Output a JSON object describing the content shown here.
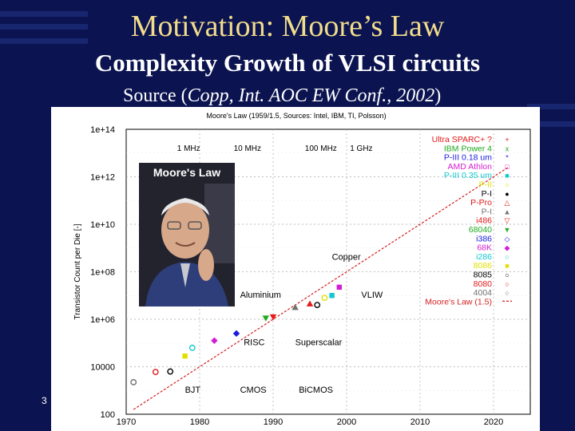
{
  "slide": {
    "title": "Motivation: Moore’s Law",
    "subtitle": "Complexity Growth of VLSI circuits",
    "source_prefix": "Source (",
    "source_italic": "Copp, Int. AOC EW Conf., 2002",
    "source_suffix": ")",
    "page_number": "3"
  },
  "chart_data": {
    "type": "scatter",
    "title": "Moore's Law (1959/1.5, Sources: Intel, IBM, TI, Polsson)",
    "ylabel": "Transistor Count per Die [-]",
    "xlabel": "",
    "xlim": [
      1970,
      2025
    ],
    "ylim_exp": [
      2,
      14
    ],
    "y_scale": "log",
    "x_ticks": [
      "1970",
      "1980",
      "1990",
      "2000",
      "2010",
      "2020"
    ],
    "y_ticks": [
      "100",
      "10000",
      "1e+06",
      "1e+08",
      "1e+10",
      "1e+12",
      "1e+14"
    ],
    "grid": true,
    "frequency_labels": [
      {
        "text": "1 MHz",
        "x": 1978.5,
        "y_exp": 13.1
      },
      {
        "text": "10 MHz",
        "x": 1986.5,
        "y_exp": 13.1
      },
      {
        "text": "100 MHz",
        "x": 1996.5,
        "y_exp": 13.1
      },
      {
        "text": "1 GHz",
        "x": 2002,
        "y_exp": 13.1
      }
    ],
    "annotations": [
      {
        "text": "Copper",
        "x": 1998,
        "y_exp": 8.5
      },
      {
        "text": "Aluminium",
        "x": 1985.5,
        "y_exp": 6.9
      },
      {
        "text": "VLIW",
        "x": 2002,
        "y_exp": 6.9
      },
      {
        "text": "RISC",
        "x": 1986,
        "y_exp": 4.9
      },
      {
        "text": "Superscalar",
        "x": 1993,
        "y_exp": 4.9
      },
      {
        "text": "BJT",
        "x": 1978,
        "y_exp": 2.9
      },
      {
        "text": "CMOS",
        "x": 1985.5,
        "y_exp": 2.9
      },
      {
        "text": "BiCMOS",
        "x": 1993.5,
        "y_exp": 2.9
      }
    ],
    "moore_line": {
      "name": "Moore's Law (1.5)",
      "x_start": 1971,
      "y_exp_start": 2.2,
      "x_end": 2022,
      "y_exp_end": 12.4,
      "color": "#d42020"
    },
    "series": [
      {
        "name": "Ultra SPARC+ ?",
        "color": "#e21a1a",
        "marker": "+"
      },
      {
        "name": "IBM Power 4",
        "color": "#1faa1f",
        "marker": "x"
      },
      {
        "name": "P-III 0.18 um",
        "color": "#1a1ae0",
        "marker": "*"
      },
      {
        "name": "AMD Athlon",
        "color": "#d21ed2",
        "marker": "□"
      },
      {
        "name": "P-III 0.35 um",
        "color": "#10c8d0",
        "marker": "■"
      },
      {
        "name": "P-II",
        "color": "#e0e000",
        "marker": "○"
      },
      {
        "name": "P-I",
        "color": "#000000",
        "marker": "●"
      },
      {
        "name": "P-Pro",
        "color": "#e21a1a",
        "marker": "△"
      },
      {
        "name": "P-I",
        "color": "#707070",
        "marker": "▲"
      },
      {
        "name": "i486",
        "color": "#e21a1a",
        "marker": "▽"
      },
      {
        "name": "68040",
        "color": "#1faa1f",
        "marker": "▼"
      },
      {
        "name": "i386",
        "color": "#1a1ae0",
        "marker": "◇"
      },
      {
        "name": "68K",
        "color": "#d21ed2",
        "marker": "◆"
      },
      {
        "name": "i286",
        "color": "#10c8d0",
        "marker": "○"
      },
      {
        "name": "8086",
        "color": "#e0e000",
        "marker": "■"
      },
      {
        "name": "8085",
        "color": "#000000",
        "marker": "○"
      },
      {
        "name": "8080",
        "color": "#e21a1a",
        "marker": "○"
      },
      {
        "name": "4004",
        "color": "#707070",
        "marker": "○"
      },
      {
        "name": "Moore's Law (1.5)",
        "color": "#d42020",
        "marker": "-"
      }
    ],
    "points": [
      {
        "x": 1971,
        "y_exp": 3.35,
        "color": "#707070",
        "shape": "circle"
      },
      {
        "x": 1974,
        "y_exp": 3.78,
        "color": "#e21a1a",
        "shape": "circle"
      },
      {
        "x": 1976,
        "y_exp": 3.8,
        "color": "#000000",
        "shape": "circle"
      },
      {
        "x": 1978,
        "y_exp": 4.45,
        "color": "#e0e000",
        "shape": "square"
      },
      {
        "x": 1979,
        "y_exp": 4.8,
        "color": "#10c8d0",
        "shape": "circle"
      },
      {
        "x": 1982,
        "y_exp": 5.1,
        "color": "#d21ed2",
        "shape": "diamond"
      },
      {
        "x": 1985,
        "y_exp": 5.4,
        "color": "#1a1ae0",
        "shape": "diamond"
      },
      {
        "x": 1989,
        "y_exp": 6.05,
        "color": "#1faa1f",
        "shape": "tri-down"
      },
      {
        "x": 1990,
        "y_exp": 6.1,
        "color": "#e21a1a",
        "shape": "tri-down"
      },
      {
        "x": 1993,
        "y_exp": 6.5,
        "color": "#707070",
        "shape": "tri-up"
      },
      {
        "x": 1995,
        "y_exp": 6.65,
        "color": "#e21a1a",
        "shape": "tri-up"
      },
      {
        "x": 1996,
        "y_exp": 6.6,
        "color": "#000000",
        "shape": "circle"
      },
      {
        "x": 1997,
        "y_exp": 6.9,
        "color": "#e0e000",
        "shape": "circle"
      },
      {
        "x": 1998,
        "y_exp": 7.0,
        "color": "#10c8d0",
        "shape": "square"
      },
      {
        "x": 1999,
        "y_exp": 7.35,
        "color": "#d21ed2",
        "shape": "square"
      }
    ]
  },
  "photo": {
    "caption": "Moore's Law"
  }
}
